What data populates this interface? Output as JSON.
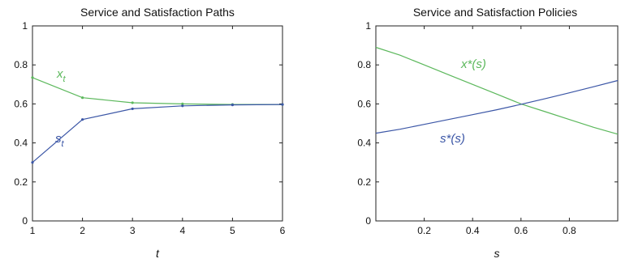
{
  "chart_data": [
    {
      "type": "line",
      "title": "Service and Satisfaction Paths",
      "xlabel": "t",
      "ylabel": "",
      "xlim": [
        1,
        6
      ],
      "ylim": [
        0,
        1
      ],
      "xticks": [
        "1",
        "2",
        "3",
        "4",
        "5",
        "6"
      ],
      "yticks": [
        "0",
        "0.2",
        "0.4",
        "0.6",
        "0.8",
        "1"
      ],
      "x": [
        1,
        2,
        3,
        4,
        5,
        6
      ],
      "grid": false,
      "series": [
        {
          "name": "x",
          "sub": "t",
          "color": "#5cb85c",
          "values": [
            0.735,
            0.632,
            0.606,
            0.6,
            0.597,
            0.597
          ]
        },
        {
          "name": "s",
          "sub": "t",
          "color": "#3b56a6",
          "values": [
            0.3,
            0.52,
            0.575,
            0.59,
            0.595,
            0.597
          ]
        }
      ]
    },
    {
      "type": "line",
      "title": "Service and Satisfaction Policies",
      "xlabel": "s",
      "ylabel": "",
      "xlim": [
        0,
        1
      ],
      "ylim": [
        0,
        1
      ],
      "xticks": [
        "0.2",
        "0.4",
        "0.6",
        "0.8"
      ],
      "yticks": [
        "0",
        "0.2",
        "0.4",
        "0.6",
        "0.8",
        "1"
      ],
      "x": [
        0,
        0.1,
        0.2,
        0.3,
        0.4,
        0.5,
        0.6,
        0.7,
        0.8,
        0.9,
        1.0
      ],
      "grid": false,
      "series": [
        {
          "name": "x*(s)",
          "color": "#5cb85c",
          "values": [
            0.89,
            0.85,
            0.8,
            0.75,
            0.7,
            0.65,
            0.6,
            0.56,
            0.52,
            0.48,
            0.445
          ]
        },
        {
          "name": "s*(s)",
          "color": "#3b56a6",
          "values": [
            0.45,
            0.47,
            0.495,
            0.52,
            0.545,
            0.57,
            0.598,
            0.627,
            0.657,
            0.688,
            0.72
          ]
        }
      ]
    }
  ]
}
